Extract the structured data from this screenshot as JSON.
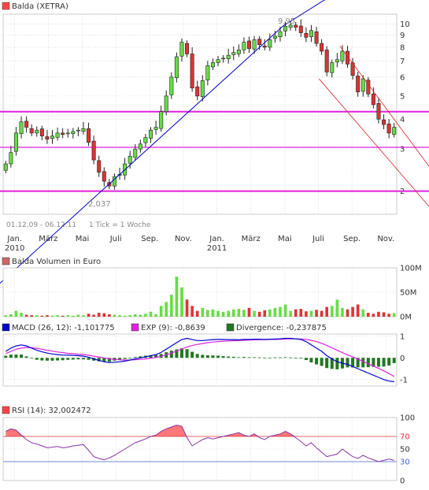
{
  "colors": {
    "up": "#66dd44",
    "down": "#dd3333",
    "magenta": "#e020e0",
    "trend_blue": "#0000cc",
    "channel_red": "#dd2222",
    "grid": "#cccccc",
    "text": "#333333",
    "light_text": "#888888",
    "macd": "#0000cc",
    "exp": "#dd22dd",
    "divergence": "#227722",
    "rsi_line": "#8833aa",
    "rsi_fill": "#ff7777"
  },
  "chart_data": [
    {
      "id": "price",
      "type": "candlestick",
      "legend": {
        "label": "Balda (XETRA)",
        "color": "#ff4444"
      },
      "scale": "log",
      "ylim": [
        1.6,
        11
      ],
      "y_ticks": [
        2,
        3,
        4,
        5,
        6,
        7,
        8,
        9,
        10
      ],
      "x_ticks": [
        "Jan.",
        "März",
        "Mai",
        "Juli",
        "Sep.",
        "Nov.",
        "Jan.",
        "März",
        "Mai",
        "Juli",
        "Sep.",
        "Nov."
      ],
      "x_years": [
        "2010",
        "2011"
      ],
      "date_range_label": "01.12.09 - 06.12.11",
      "tick_label": "1 Tick = 1 Woche",
      "high_label": "9,95",
      "low_label": "2,037",
      "horizontal_lines": [
        4.3,
        3.05,
        2.0
      ],
      "trend_line": [
        [
          0,
          1.2
        ],
        [
          54,
          9.8
        ],
        [
          64,
          12.0
        ]
      ],
      "channel_upper": [
        [
          65,
          8.1
        ],
        [
          101,
          2.8
        ]
      ],
      "channel_lower": [
        [
          61,
          5.9
        ],
        [
          101,
          1.75
        ]
      ],
      "closes": [
        2.6,
        2.9,
        3.5,
        3.9,
        3.7,
        3.5,
        3.6,
        3.4,
        3.3,
        3.4,
        3.5,
        3.45,
        3.5,
        3.55,
        3.6,
        3.65,
        3.2,
        2.7,
        2.4,
        2.2,
        2.1,
        2.3,
        2.35,
        2.6,
        2.8,
        3.0,
        3.15,
        3.35,
        3.6,
        3.7,
        4.3,
        5.0,
        6.0,
        7.3,
        8.4,
        7.5,
        5.4,
        5.0,
        5.8,
        6.7,
        6.9,
        7.1,
        7.2,
        7.4,
        7.6,
        7.8,
        8.4,
        7.9,
        8.6,
        8.2,
        8.0,
        8.6,
        8.9,
        9.3,
        9.8,
        9.9,
        9.7,
        9.2,
        8.8,
        9.4,
        8.3,
        7.7,
        6.3,
        6.9,
        7.1,
        7.7,
        6.8,
        6.1,
        5.2,
        5.9,
        5.1,
        4.6,
        4.0,
        3.8,
        3.5,
        3.7
      ]
    },
    {
      "id": "volume",
      "type": "bar",
      "legend": {
        "label": "Balda Volumen in Euro",
        "color": "#cc6666"
      },
      "ylim": [
        0,
        100
      ],
      "y_ticks": [
        0,
        50,
        100
      ],
      "y_tick_labels": [
        "0M",
        "50M",
        "100M"
      ],
      "values": [
        3,
        5,
        12,
        8,
        4,
        3,
        3,
        2,
        3,
        2,
        3,
        2,
        3,
        2,
        4,
        3,
        6,
        4,
        8,
        7,
        5,
        4,
        3,
        2,
        3,
        5,
        4,
        6,
        10,
        5,
        22,
        30,
        45,
        82,
        60,
        35,
        22,
        12,
        18,
        14,
        15,
        12,
        10,
        12,
        15,
        16,
        14,
        18,
        12,
        10,
        13,
        15,
        18,
        20,
        25,
        12,
        15,
        16,
        11,
        12,
        14,
        12,
        20,
        22,
        35,
        18,
        15,
        20,
        25,
        15,
        8,
        6,
        10,
        9,
        6,
        7
      ]
    },
    {
      "id": "macd",
      "type": "line",
      "legend": [
        {
          "label": "MACD (26, 12): -1,101775",
          "color": "#0000cc"
        },
        {
          "label": "EXP (9): -0,8639",
          "color": "#dd22dd"
        },
        {
          "label": "Divergence: -0,237875",
          "color": "#227722"
        }
      ],
      "ylim": [
        -1.3,
        1.1
      ],
      "y_ticks": [
        -1,
        0,
        1
      ],
      "series": [
        {
          "name": "MACD (26, 12)",
          "values": [
            0.3,
            0.45,
            0.55,
            0.6,
            0.55,
            0.45,
            0.35,
            0.28,
            0.22,
            0.18,
            0.15,
            0.13,
            0.12,
            0.11,
            0.1,
            0.08,
            0.03,
            -0.05,
            -0.12,
            -0.18,
            -0.22,
            -0.2,
            -0.18,
            -0.15,
            -0.1,
            -0.05,
            0.0,
            0.05,
            0.1,
            0.15,
            0.25,
            0.4,
            0.55,
            0.7,
            0.85,
            0.9,
            0.85,
            0.8,
            0.8,
            0.82,
            0.84,
            0.85,
            0.85,
            0.84,
            0.84,
            0.83,
            0.85,
            0.85,
            0.86,
            0.86,
            0.85,
            0.86,
            0.87,
            0.88,
            0.9,
            0.9,
            0.88,
            0.85,
            0.75,
            0.6,
            0.45,
            0.3,
            0.1,
            -0.05,
            -0.18,
            -0.25,
            -0.3,
            -0.4,
            -0.5,
            -0.6,
            -0.7,
            -0.8,
            -0.9,
            -1.0,
            -1.07,
            -1.1
          ]
        },
        {
          "name": "EXP (9)",
          "values": [
            0.2,
            0.3,
            0.4,
            0.45,
            0.48,
            0.47,
            0.44,
            0.4,
            0.35,
            0.31,
            0.27,
            0.24,
            0.21,
            0.19,
            0.17,
            0.15,
            0.12,
            0.08,
            0.04,
            0.0,
            -0.04,
            -0.07,
            -0.09,
            -0.1,
            -0.1,
            -0.09,
            -0.07,
            -0.05,
            -0.02,
            0.02,
            0.07,
            0.14,
            0.22,
            0.31,
            0.41,
            0.5,
            0.57,
            0.62,
            0.66,
            0.7,
            0.73,
            0.75,
            0.77,
            0.78,
            0.79,
            0.8,
            0.81,
            0.82,
            0.83,
            0.84,
            0.84,
            0.85,
            0.85,
            0.86,
            0.87,
            0.88,
            0.88,
            0.87,
            0.85,
            0.81,
            0.75,
            0.67,
            0.57,
            0.46,
            0.35,
            0.24,
            0.14,
            0.04,
            -0.06,
            -0.16,
            -0.27,
            -0.38,
            -0.49,
            -0.6,
            -0.72,
            -0.86
          ]
        },
        {
          "name": "Divergence",
          "type": "bar",
          "values": [
            0.1,
            0.15,
            0.15,
            0.15,
            0.07,
            -0.02,
            -0.09,
            -0.12,
            -0.13,
            -0.13,
            -0.12,
            -0.11,
            -0.09,
            -0.08,
            -0.07,
            -0.07,
            -0.09,
            -0.13,
            -0.16,
            -0.18,
            -0.18,
            -0.13,
            -0.09,
            -0.05,
            0.0,
            0.04,
            0.07,
            0.1,
            0.12,
            0.13,
            0.18,
            0.26,
            0.33,
            0.39,
            0.44,
            0.4,
            0.28,
            0.18,
            0.14,
            0.12,
            0.11,
            0.1,
            0.08,
            0.06,
            0.05,
            0.03,
            0.04,
            0.03,
            0.03,
            0.02,
            0.01,
            0.01,
            0.02,
            0.02,
            0.03,
            0.02,
            0.0,
            -0.02,
            -0.1,
            -0.21,
            -0.3,
            -0.37,
            -0.47,
            -0.51,
            -0.53,
            -0.49,
            -0.44,
            -0.44,
            -0.44,
            -0.44,
            -0.43,
            -0.42,
            -0.41,
            -0.4,
            -0.35,
            -0.24
          ]
        }
      ]
    },
    {
      "id": "rsi",
      "type": "line",
      "legend": {
        "label": "RSI (14): 32,002472",
        "color": "#ff4444"
      },
      "ylim": [
        0,
        100
      ],
      "y_ticks": [
        0,
        30,
        50,
        70,
        100
      ],
      "reference_lines": [
        30,
        70
      ],
      "values": [
        78,
        82,
        80,
        72,
        65,
        60,
        58,
        55,
        52,
        53,
        54,
        52,
        53,
        55,
        56,
        57,
        48,
        38,
        35,
        33,
        36,
        40,
        45,
        50,
        55,
        60,
        63,
        66,
        70,
        72,
        78,
        82,
        85,
        88,
        86,
        68,
        55,
        60,
        65,
        68,
        66,
        68,
        70,
        72,
        74,
        76,
        72,
        70,
        74,
        68,
        65,
        70,
        72,
        74,
        78,
        74,
        68,
        62,
        55,
        60,
        52,
        45,
        38,
        40,
        42,
        50,
        44,
        38,
        35,
        40,
        36,
        33,
        30,
        32,
        34,
        32
      ]
    }
  ]
}
